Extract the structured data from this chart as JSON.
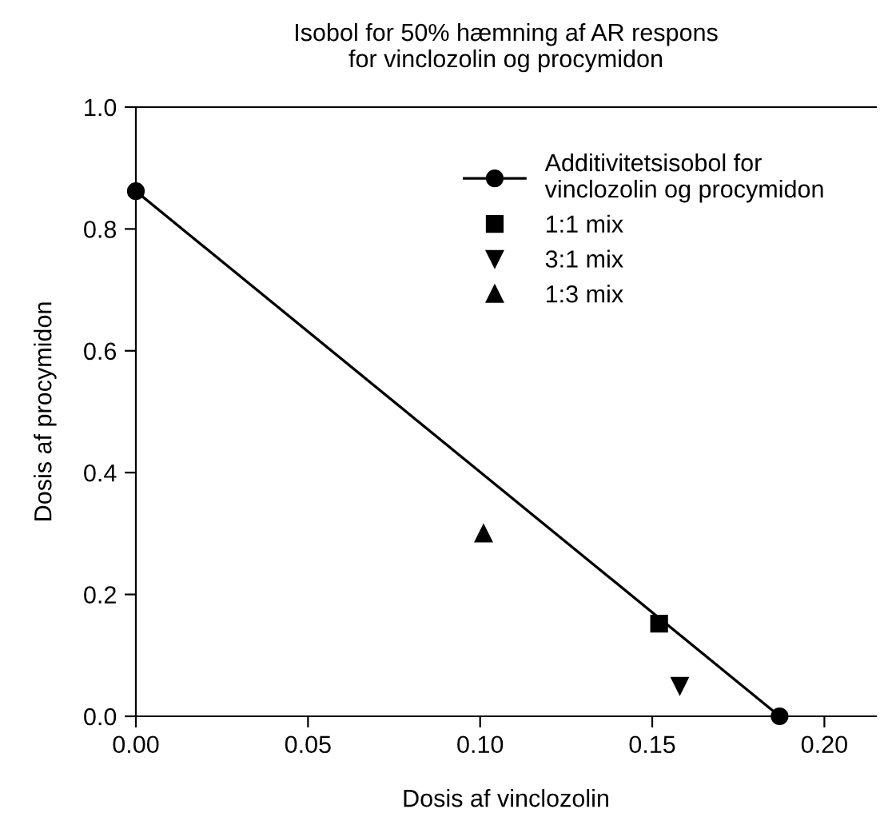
{
  "chart_data": {
    "type": "scatter",
    "title": "Isobol for 50% hæmning af AR respons\nfor vinclozolin og procymidon",
    "xlabel": "Dosis af vinclozolin",
    "ylabel": "Dosis af procymidon",
    "series": [
      {
        "name": "Additivitetsisobol for\nvinclozolin og procymidon",
        "type": "line",
        "marker": "circle",
        "color": "#000000",
        "x": [
          0.0,
          0.187
        ],
        "values": [
          0.862,
          0.0
        ]
      },
      {
        "name": "1:1 mix",
        "marker": "square",
        "color": "#000000",
        "x": [
          0.152
        ],
        "values": [
          0.152
        ]
      },
      {
        "name": "3:1 mix",
        "marker": "triangle_down",
        "color": "#000000",
        "x": [
          0.158
        ],
        "values": [
          0.05
        ]
      },
      {
        "name": "1:3 mix",
        "marker": "triangle",
        "color": "#000000",
        "x": [
          0.101
        ],
        "values": [
          0.3
        ]
      }
    ],
    "xlim": [
      0.0,
      0.215
    ],
    "xticks": [
      {
        "value": 0.0,
        "label": "0.00"
      },
      {
        "value": 0.05,
        "label": "0.05"
      },
      {
        "value": 0.1,
        "label": "0.10"
      },
      {
        "value": 0.15,
        "label": "0.15"
      },
      {
        "value": 0.2,
        "label": "0.20"
      }
    ],
    "ylim": [
      0.0,
      1.0
    ],
    "yticks": [
      {
        "value": 0.0,
        "label": "0.0"
      },
      {
        "value": 0.2,
        "label": "0.2"
      },
      {
        "value": 0.4,
        "label": "0.4"
      },
      {
        "value": 0.6,
        "label": "0.6"
      },
      {
        "value": 0.8,
        "label": "0.8"
      },
      {
        "value": 1.0,
        "label": "1.0"
      }
    ],
    "grid": false,
    "legend": "top right"
  }
}
